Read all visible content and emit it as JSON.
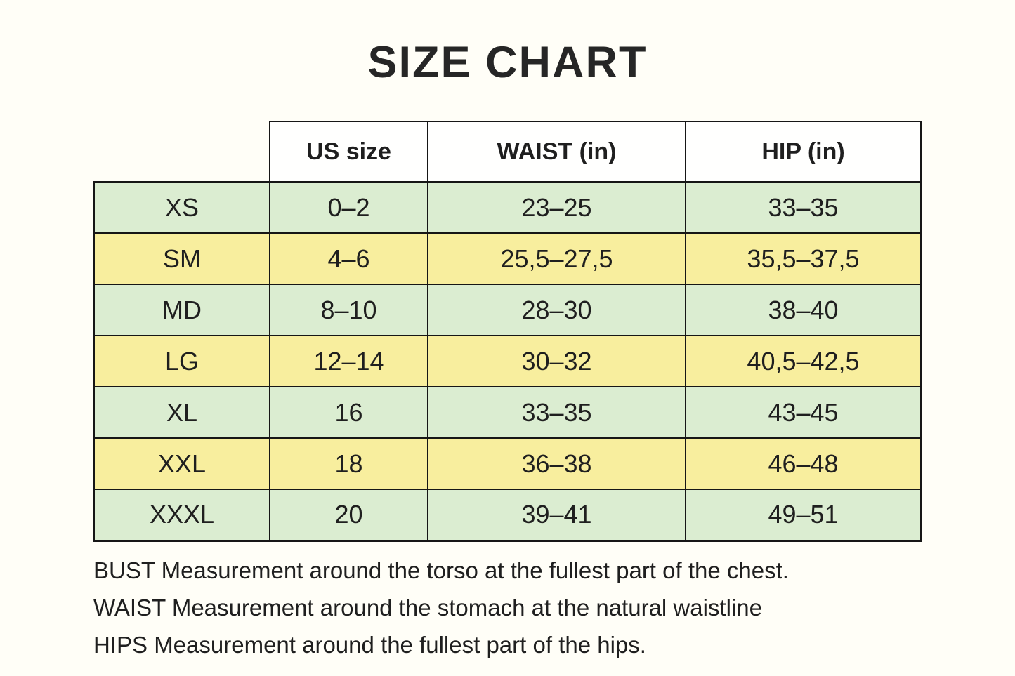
{
  "title": "SIZE CHART",
  "chart_data": {
    "type": "table",
    "title": "SIZE CHART",
    "columns": [
      "US size",
      "WAIST (in)",
      "HIP (in)"
    ],
    "rows": [
      {
        "size": "XS",
        "us_size": "0–2",
        "waist_in": "23–25",
        "hip_in": "33–35"
      },
      {
        "size": "SM",
        "us_size": "4–6",
        "waist_in": "25,5–27,5",
        "hip_in": "35,5–37,5"
      },
      {
        "size": "MD",
        "us_size": "8–10",
        "waist_in": "28–30",
        "hip_in": "38–40"
      },
      {
        "size": "LG",
        "us_size": "12–14",
        "waist_in": "30–32",
        "hip_in": "40,5–42,5"
      },
      {
        "size": "XL",
        "us_size": "16",
        "waist_in": "33–35",
        "hip_in": "43–45"
      },
      {
        "size": "XXL",
        "us_size": "18",
        "waist_in": "36–38",
        "hip_in": "46–48"
      },
      {
        "size": "XXXL",
        "us_size": "20",
        "waist_in": "39–41",
        "hip_in": "49–51"
      }
    ],
    "row_colors": [
      "green",
      "yellow",
      "green",
      "yellow",
      "green",
      "yellow",
      "green"
    ]
  },
  "notes": {
    "bust": "BUST Measurement around the torso at the fullest part of the chest.",
    "waist": "WAIST Measurement around the stomach at the natural waistline",
    "hips": "HIPS Measurement around the fullest part of the hips."
  },
  "colors": {
    "background": "#FFFEF7",
    "row_green": "#DBEDD1",
    "row_yellow": "#F8EE9E",
    "header_background": "#FFFFFE",
    "border": "#161616",
    "text": "#1F1F1F"
  }
}
